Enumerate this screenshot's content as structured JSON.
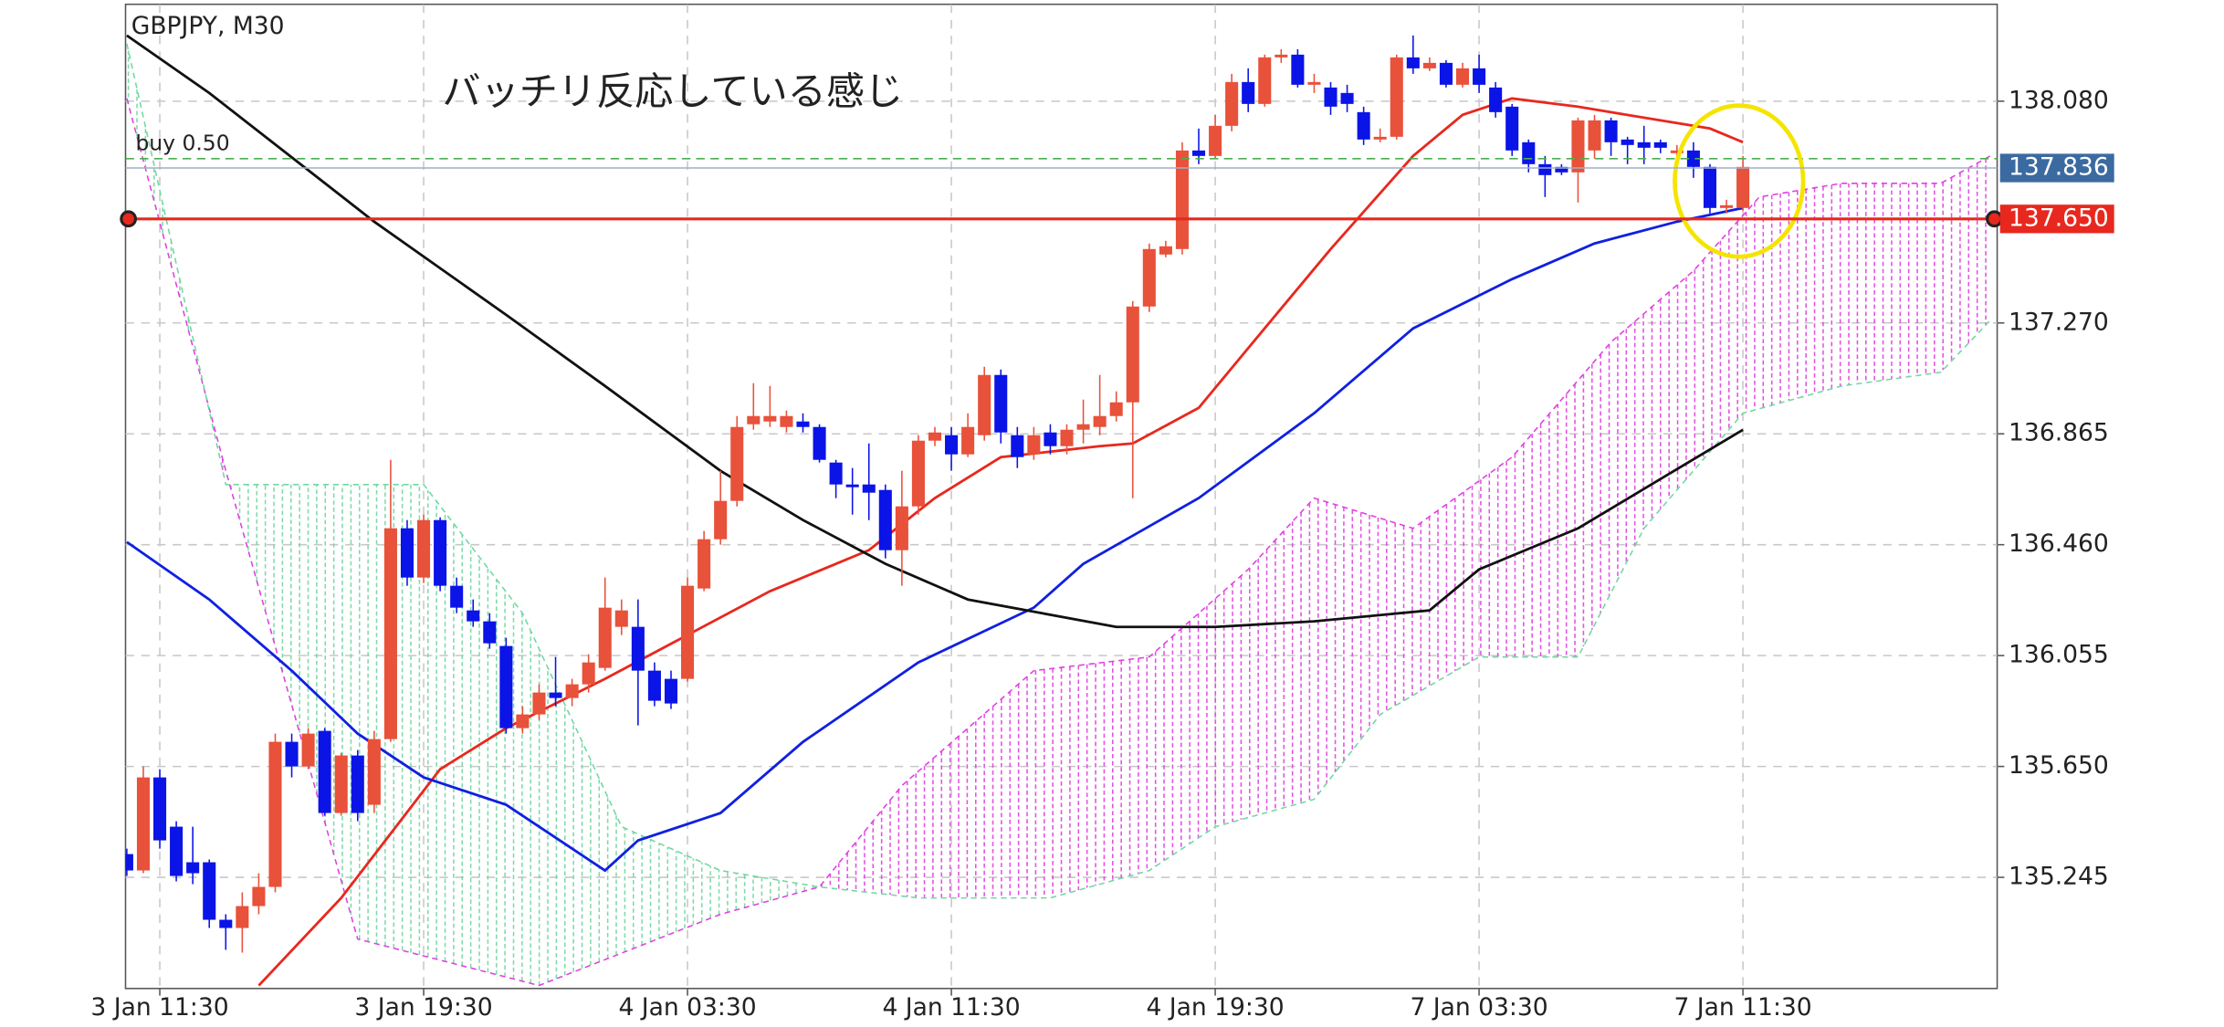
{
  "chart_data": {
    "type": "candlestick",
    "title": "GBPJPY, M30",
    "annotation": "バッチリ反応している感じ",
    "up_color": "#e8513a",
    "down_color": "#0a14e6",
    "categories": [
      null,
      null,
      "3 Jan 11:30",
      null,
      null,
      null,
      null,
      null,
      null,
      null,
      null,
      null,
      null,
      null,
      null,
      null,
      null,
      null,
      "3 Jan 19:30",
      null,
      null,
      null,
      null,
      null,
      null,
      null,
      null,
      null,
      null,
      null,
      null,
      null,
      null,
      null,
      "4 Jan 03:30",
      null,
      null,
      null,
      null,
      null,
      null,
      null,
      null,
      null,
      null,
      null,
      null,
      null,
      null,
      null,
      "4 Jan 11:30",
      null,
      null,
      null,
      null,
      null,
      null,
      null,
      null,
      null,
      null,
      null,
      null,
      null,
      null,
      null,
      "4 Jan 19:30",
      null,
      null,
      null,
      null,
      null,
      null,
      null,
      null,
      null,
      null,
      null,
      null,
      null,
      null,
      null,
      "7 Jan 03:30",
      null,
      null,
      null,
      null,
      null,
      null,
      null,
      null,
      null,
      null,
      null,
      null,
      null,
      null,
      null,
      "7 Jan 11:30",
      null,
      null,
      null,
      null,
      null,
      null,
      null,
      null,
      null,
      null,
      null,
      null,
      null,
      null,
      null
    ],
    "open": [
      135.33,
      135.27,
      135.61,
      135.43,
      135.3,
      135.3,
      135.09,
      135.06,
      135.14,
      135.21,
      135.74,
      135.65,
      135.78,
      135.48,
      135.69,
      135.51,
      135.75,
      136.52,
      136.34,
      136.55,
      136.31,
      136.22,
      136.18,
      136.09,
      135.79,
      135.84,
      135.92,
      135.9,
      135.95,
      136.01,
      136.16,
      136.16,
      136.0,
      135.97,
      135.97,
      136.3,
      136.48,
      136.62,
      136.9,
      136.91,
      136.89,
      136.91,
      136.89,
      136.76,
      136.68,
      136.68,
      136.66,
      136.44,
      136.6,
      136.84,
      136.86,
      136.79,
      136.86,
      137.08,
      136.86,
      136.79,
      136.87,
      136.82,
      136.88,
      136.89,
      136.93,
      136.98,
      137.33,
      137.52,
      137.54,
      137.9,
      137.88,
      137.99,
      138.15,
      138.07,
      138.24,
      138.25,
      138.14,
      138.13,
      138.11,
      138.04,
      137.94,
      137.95,
      138.24,
      138.2,
      138.22,
      138.14,
      138.2,
      138.13,
      138.06,
      137.93,
      137.85,
      137.84,
      137.82,
      137.9,
      138.01,
      137.94,
      137.93,
      137.93,
      137.89,
      137.9,
      137.84,
      137.69,
      137.69,
      null,
      null,
      null,
      null,
      null,
      null,
      null,
      null,
      null,
      null,
      null,
      null,
      null,
      null,
      null
    ],
    "high": [
      135.35,
      135.65,
      135.64,
      135.45,
      135.43,
      135.31,
      135.11,
      135.19,
      135.26,
      135.77,
      135.77,
      135.79,
      135.79,
      135.7,
      135.71,
      135.78,
      136.77,
      136.55,
      136.57,
      136.56,
      136.34,
      136.26,
      136.21,
      136.12,
      135.87,
      135.95,
      136.05,
      135.97,
      136.06,
      136.34,
      136.26,
      136.26,
      136.03,
      136.0,
      136.34,
      136.51,
      136.73,
      136.93,
      137.05,
      137.04,
      136.95,
      136.94,
      136.9,
      136.77,
      136.74,
      136.83,
      136.68,
      136.73,
      136.86,
      136.89,
      136.89,
      136.94,
      137.11,
      137.1,
      136.89,
      136.89,
      136.9,
      136.9,
      136.99,
      137.08,
      137.02,
      137.35,
      137.56,
      137.57,
      137.93,
      137.98,
      138.03,
      138.18,
      138.2,
      138.25,
      138.27,
      138.27,
      138.18,
      138.15,
      138.14,
      138.06,
      137.98,
      138.25,
      138.32,
      138.24,
      138.23,
      138.22,
      138.25,
      138.15,
      138.07,
      137.94,
      137.88,
      137.85,
      138.02,
      138.03,
      138.02,
      137.95,
      137.99,
      137.94,
      137.92,
      137.93,
      137.85,
      137.72,
      137.88,
      null,
      null,
      null,
      null,
      null,
      null,
      null,
      null,
      null,
      null,
      null,
      null,
      null,
      null,
      null
    ],
    "low": [
      135.25,
      135.26,
      135.35,
      135.23,
      135.22,
      135.06,
      134.98,
      134.97,
      135.11,
      135.19,
      135.61,
      135.64,
      135.47,
      135.47,
      135.45,
      135.48,
      135.74,
      136.31,
      136.32,
      136.29,
      136.21,
      136.16,
      136.08,
      135.77,
      135.77,
      135.82,
      135.87,
      135.87,
      135.92,
      136.0,
      136.13,
      135.8,
      135.87,
      135.86,
      135.96,
      136.29,
      136.46,
      136.6,
      136.88,
      136.89,
      136.87,
      136.87,
      136.76,
      136.63,
      136.57,
      136.55,
      136.41,
      136.31,
      136.57,
      136.82,
      136.73,
      136.78,
      136.84,
      136.83,
      136.74,
      136.77,
      136.79,
      136.79,
      136.83,
      136.86,
      136.91,
      136.63,
      137.31,
      137.51,
      137.52,
      137.85,
      137.87,
      137.97,
      138.04,
      138.06,
      138.22,
      138.13,
      138.11,
      138.03,
      138.04,
      137.92,
      137.93,
      137.94,
      138.18,
      138.19,
      138.13,
      138.13,
      138.11,
      138.02,
      137.88,
      137.82,
      137.73,
      137.81,
      137.71,
      137.87,
      137.88,
      137.85,
      137.85,
      137.89,
      137.87,
      137.8,
      137.67,
      137.67,
      137.68,
      null,
      null,
      null,
      null,
      null,
      null,
      null,
      null,
      null,
      null,
      null,
      null,
      null,
      null,
      null
    ],
    "close": [
      135.27,
      135.61,
      135.38,
      135.25,
      135.26,
      135.09,
      135.06,
      135.14,
      135.21,
      135.74,
      135.65,
      135.77,
      135.48,
      135.69,
      135.48,
      135.75,
      136.52,
      136.34,
      136.55,
      136.31,
      136.23,
      136.18,
      136.1,
      135.79,
      135.84,
      135.92,
      135.9,
      135.95,
      136.03,
      136.23,
      136.22,
      136.0,
      135.89,
      135.88,
      136.31,
      136.48,
      136.62,
      136.89,
      136.93,
      136.93,
      136.93,
      136.89,
      136.77,
      136.68,
      136.67,
      136.65,
      136.44,
      136.6,
      136.84,
      136.87,
      136.79,
      136.89,
      137.08,
      136.87,
      136.78,
      136.86,
      136.82,
      136.88,
      136.9,
      136.93,
      136.98,
      137.33,
      137.54,
      137.55,
      137.9,
      137.88,
      137.99,
      138.15,
      138.07,
      138.24,
      138.25,
      138.14,
      138.15,
      138.06,
      138.07,
      137.94,
      137.95,
      138.24,
      138.2,
      138.22,
      138.14,
      138.2,
      138.14,
      138.04,
      137.9,
      137.85,
      137.81,
      137.82,
      138.01,
      138.01,
      137.93,
      137.92,
      137.91,
      137.91,
      137.9,
      137.84,
      137.69,
      137.7,
      137.84,
      null,
      null,
      null,
      null,
      null,
      null,
      null,
      null,
      null,
      null,
      null,
      null,
      null,
      null,
      null
    ],
    "lines": [
      {
        "color": "#e8281e",
        "x": [
          8,
          13,
          19,
          23,
          29,
          34,
          39,
          45,
          49,
          53,
          59,
          61,
          65,
          69,
          73,
          78,
          81,
          84,
          88,
          92,
          96,
          98
        ],
        "values": [
          134.85,
          135.17,
          135.64,
          135.79,
          135.97,
          136.13,
          136.29,
          136.44,
          136.63,
          136.78,
          136.82,
          136.83,
          136.96,
          137.25,
          137.54,
          137.88,
          138.03,
          138.09,
          138.06,
          138.02,
          137.98,
          137.93
        ]
      },
      {
        "color": "#1020e0",
        "x": [
          0,
          5,
          10,
          14,
          18,
          23,
          27,
          29,
          31,
          36,
          41,
          48,
          55,
          58,
          65,
          72,
          78,
          84,
          89,
          94,
          98
        ],
        "values": [
          136.47,
          136.26,
          136.0,
          135.77,
          135.61,
          135.51,
          135.35,
          135.27,
          135.38,
          135.48,
          135.74,
          136.03,
          136.23,
          136.39,
          136.63,
          136.94,
          137.25,
          137.43,
          137.56,
          137.64,
          137.69
        ]
      },
      {
        "color": "#111111",
        "x": [
          0,
          5,
          15,
          23,
          29,
          36,
          41,
          46,
          51,
          60,
          66,
          72,
          79,
          82,
          88,
          93,
          98
        ],
        "values": [
          138.32,
          138.11,
          137.64,
          137.3,
          137.04,
          136.73,
          136.55,
          136.39,
          136.26,
          136.16,
          136.16,
          136.18,
          136.22,
          136.37,
          136.52,
          136.7,
          136.88
        ]
      }
    ],
    "cloud": {
      "a_above_color": "#e040e0",
      "b_above_color": "#70d8a0",
      "span_a": {
        "color": "#e040e0",
        "x": [
          0,
          6,
          14,
          25,
          36,
          42,
          47,
          55,
          62,
          68,
          72,
          78,
          84,
          90,
          95,
          99,
          104,
          110,
          113
        ],
        "values": [
          138.09,
          136.73,
          135.02,
          134.85,
          135.11,
          135.21,
          135.58,
          136.0,
          136.05,
          136.37,
          136.63,
          136.52,
          136.78,
          137.2,
          137.46,
          137.73,
          137.78,
          137.78,
          137.88
        ]
      },
      "span_b": {
        "color": "#70d8a0",
        "x": [
          0,
          6,
          18,
          24,
          30,
          36,
          42,
          48,
          56,
          62,
          66,
          72,
          76,
          82,
          88,
          92,
          98,
          104,
          110,
          113
        ],
        "values": [
          138.29,
          136.68,
          136.68,
          136.21,
          135.43,
          135.27,
          135.21,
          135.17,
          135.17,
          135.27,
          135.43,
          135.53,
          135.84,
          136.05,
          136.05,
          136.52,
          136.94,
          137.04,
          137.09,
          137.28
        ]
      }
    },
    "buy_line": {
      "label": "buy 0.50",
      "value": 137.87,
      "color": "#4caf50"
    },
    "price_lines": [
      {
        "value": 137.836,
        "label": "137.836",
        "color": "#9fb0c8",
        "tag_color": "#3b6aa0"
      },
      {
        "value": 137.65,
        "label": "137.650",
        "color": "#e8281e",
        "tag_color": "#e8281e"
      }
    ],
    "ylim": [
      134.839,
      138.434
    ],
    "yticks": [
      135.245,
      {
        "value": 135.65,
        "label": "135.650"
      },
      136.055,
      {
        "value": 136.46,
        "label": "136.460"
      },
      136.865,
      {
        "value": 137.27,
        "label": "137.270"
      },
      {
        "value": 138.08,
        "label": "138.080"
      }
    ],
    "grid": true
  }
}
